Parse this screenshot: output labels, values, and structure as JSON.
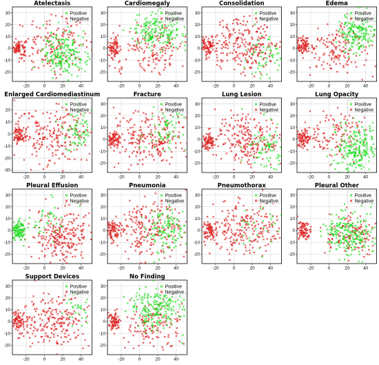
{
  "figure": {
    "rows": 4,
    "cols": 4
  },
  "colors": {
    "positive": "#22dd22",
    "negative": "#dd2222"
  },
  "chart_data": [
    {
      "type": "scatter",
      "title": "Atelectasis",
      "xlim": [
        -35,
        52
      ],
      "ylim": [
        -28,
        35
      ],
      "xticks": [
        -20,
        0,
        20,
        40
      ],
      "yticks": [
        -20,
        -10,
        0,
        10,
        20,
        30
      ],
      "legend": {
        "location": "top-right",
        "entries": [
          "Positive",
          "Negative"
        ]
      },
      "grid": true,
      "series": [
        {
          "name": "Positive",
          "clusters": [
            {
              "cx": 22,
              "cy": -5,
              "sx": 12,
              "sy": 9,
              "n": 200
            }
          ]
        },
        {
          "name": "Negative",
          "clusters": [
            {
              "cx": -28,
              "cy": 0,
              "sx": 4,
              "sy": 4,
              "n": 80
            },
            {
              "cx": 10,
              "cy": 3,
              "sx": 20,
              "sy": 11,
              "n": 150
            }
          ]
        }
      ]
    },
    {
      "type": "scatter",
      "title": "Cardiomegaly",
      "xlim": [
        -35,
        52
      ],
      "ylim": [
        -28,
        35
      ],
      "xticks": [
        -20,
        0,
        20,
        40
      ],
      "yticks": [
        -20,
        -10,
        0,
        10,
        20,
        30
      ],
      "legend": {
        "location": "top-right",
        "entries": [
          "Positive",
          "Negative"
        ]
      },
      "grid": true,
      "series": [
        {
          "name": "Positive",
          "clusters": [
            {
              "cx": 20,
              "cy": 15,
              "sx": 15,
              "sy": 8,
              "n": 200
            }
          ]
        },
        {
          "name": "Negative",
          "clusters": [
            {
              "cx": -28,
              "cy": 0,
              "sx": 4,
              "sy": 4,
              "n": 80
            },
            {
              "cx": 12,
              "cy": 0,
              "sx": 20,
              "sy": 11,
              "n": 150
            }
          ]
        }
      ]
    },
    {
      "type": "scatter",
      "title": "Consolidation",
      "xlim": [
        -35,
        52
      ],
      "ylim": [
        -28,
        35
      ],
      "xticks": [
        -20,
        0,
        20,
        40
      ],
      "yticks": [
        -20,
        -10,
        0,
        10,
        20,
        30
      ],
      "legend": {
        "location": "top-right",
        "entries": [
          "Positive",
          "Negative"
        ]
      },
      "grid": true,
      "series": [
        {
          "name": "Positive",
          "clusters": [
            {
              "cx": 35,
              "cy": -5,
              "sx": 10,
              "sy": 10,
              "n": 60
            }
          ]
        },
        {
          "name": "Negative",
          "clusters": [
            {
              "cx": -28,
              "cy": 2,
              "sx": 4,
              "sy": 4,
              "n": 80
            },
            {
              "cx": 12,
              "cy": 3,
              "sx": 20,
              "sy": 12,
              "n": 250
            }
          ]
        }
      ]
    },
    {
      "type": "scatter",
      "title": "Edema",
      "xlim": [
        -35,
        52
      ],
      "ylim": [
        -28,
        35
      ],
      "xticks": [
        -20,
        0,
        20,
        40
      ],
      "yticks": [
        -20,
        -10,
        0,
        10,
        20,
        30
      ],
      "legend": {
        "location": "top-right",
        "entries": [
          "Positive",
          "Negative"
        ]
      },
      "grid": true,
      "series": [
        {
          "name": "Positive",
          "clusters": [
            {
              "cx": 30,
              "cy": 15,
              "sx": 10,
              "sy": 10,
              "n": 200
            }
          ]
        },
        {
          "name": "Negative",
          "clusters": [
            {
              "cx": -28,
              "cy": 2,
              "sx": 4,
              "sy": 4,
              "n": 80
            },
            {
              "cx": 10,
              "cy": 0,
              "sx": 18,
              "sy": 11,
              "n": 150
            }
          ]
        }
      ]
    },
    {
      "type": "scatter",
      "title": "Enlarged Cardiomediastinum",
      "xlim": [
        -35,
        52
      ],
      "ylim": [
        -32,
        30
      ],
      "xticks": [
        -20,
        0,
        20,
        40
      ],
      "yticks": [
        -30,
        -20,
        -10,
        0,
        10,
        20
      ],
      "legend": {
        "location": "top-right",
        "entries": [
          "Positive",
          "Negative"
        ]
      },
      "grid": true,
      "series": [
        {
          "name": "Positive",
          "clusters": [
            {
              "cx": 35,
              "cy": 5,
              "sx": 10,
              "sy": 10,
              "n": 80
            }
          ]
        },
        {
          "name": "Negative",
          "clusters": [
            {
              "cx": -28,
              "cy": 0,
              "sx": 4,
              "sy": 4,
              "n": 80
            },
            {
              "cx": 12,
              "cy": 0,
              "sx": 20,
              "sy": 12,
              "n": 220
            }
          ]
        }
      ]
    },
    {
      "type": "scatter",
      "title": "Fracture",
      "xlim": [
        -35,
        52
      ],
      "ylim": [
        -28,
        35
      ],
      "xticks": [
        -20,
        0,
        20,
        40
      ],
      "yticks": [
        -20,
        -10,
        0,
        10,
        20,
        30
      ],
      "legend": {
        "location": "top-right",
        "entries": [
          "Positive",
          "Negative"
        ]
      },
      "grid": true,
      "series": [
        {
          "name": "Positive",
          "clusters": [
            {
              "cx": 30,
              "cy": 5,
              "sx": 12,
              "sy": 10,
              "n": 70
            }
          ]
        },
        {
          "name": "Negative",
          "clusters": [
            {
              "cx": -28,
              "cy": 0,
              "sx": 4,
              "sy": 4,
              "n": 80
            },
            {
              "cx": 12,
              "cy": 2,
              "sx": 20,
              "sy": 12,
              "n": 230
            }
          ]
        }
      ]
    },
    {
      "type": "scatter",
      "title": "Lung Lesion",
      "xlim": [
        -35,
        52
      ],
      "ylim": [
        -28,
        35
      ],
      "xticks": [
        -20,
        0,
        20,
        40
      ],
      "yticks": [
        -20,
        -10,
        0,
        10,
        20,
        30
      ],
      "legend": {
        "location": "top-right",
        "entries": [
          "Positive",
          "Negative"
        ]
      },
      "grid": true,
      "series": [
        {
          "name": "Positive",
          "clusters": [
            {
              "cx": 35,
              "cy": -5,
              "sx": 10,
              "sy": 10,
              "n": 80
            }
          ]
        },
        {
          "name": "Negative",
          "clusters": [
            {
              "cx": -28,
              "cy": -2,
              "sx": 4,
              "sy": 4,
              "n": 80
            },
            {
              "cx": 15,
              "cy": 0,
              "sx": 18,
              "sy": 11,
              "n": 230
            }
          ]
        }
      ]
    },
    {
      "type": "scatter",
      "title": "Lung Opacity",
      "xlim": [
        -35,
        52
      ],
      "ylim": [
        -28,
        35
      ],
      "xticks": [
        -20,
        0,
        20,
        40
      ],
      "yticks": [
        -20,
        -10,
        0,
        10,
        20,
        30
      ],
      "legend": {
        "location": "top-right",
        "entries": [
          "Positive",
          "Negative"
        ]
      },
      "grid": true,
      "series": [
        {
          "name": "Positive",
          "clusters": [
            {
              "cx": 30,
              "cy": -8,
              "sx": 12,
              "sy": 10,
              "n": 220
            }
          ]
        },
        {
          "name": "Negative",
          "clusters": [
            {
              "cx": -28,
              "cy": 0,
              "sx": 4,
              "sy": 4,
              "n": 80
            },
            {
              "cx": 8,
              "cy": 5,
              "sx": 18,
              "sy": 11,
              "n": 120
            }
          ]
        }
      ]
    },
    {
      "type": "scatter",
      "title": "Pleural Effusion",
      "xlim": [
        -35,
        52
      ],
      "ylim": [
        -28,
        35
      ],
      "xticks": [
        -20,
        0,
        20,
        40
      ],
      "yticks": [
        -20,
        -10,
        0,
        10,
        20,
        30
      ],
      "legend": {
        "location": "top-right",
        "entries": [
          "Positive",
          "Negative"
        ]
      },
      "grid": true,
      "series": [
        {
          "name": "Positive",
          "clusters": [
            {
              "cx": -28,
              "cy": 0,
              "sx": 4,
              "sy": 4,
              "n": 110
            },
            {
              "cx": 5,
              "cy": 8,
              "sx": 12,
              "sy": 8,
              "n": 40
            }
          ]
        },
        {
          "name": "Negative",
          "clusters": [
            {
              "cx": 20,
              "cy": -5,
              "sx": 15,
              "sy": 11,
              "n": 250
            }
          ]
        }
      ]
    },
    {
      "type": "scatter",
      "title": "Pneumonia",
      "xlim": [
        -35,
        52
      ],
      "ylim": [
        -28,
        35
      ],
      "xticks": [
        -20,
        0,
        20,
        40
      ],
      "yticks": [
        -20,
        -10,
        0,
        10,
        20,
        30
      ],
      "legend": {
        "location": "top-right",
        "entries": [
          "Positive",
          "Negative"
        ]
      },
      "grid": true,
      "series": [
        {
          "name": "Positive",
          "clusters": [
            {
              "cx": 30,
              "cy": 0,
              "sx": 10,
              "sy": 10,
              "n": 120
            }
          ]
        },
        {
          "name": "Negative",
          "clusters": [
            {
              "cx": -28,
              "cy": 0,
              "sx": 4,
              "sy": 4,
              "n": 80
            },
            {
              "cx": 12,
              "cy": 2,
              "sx": 20,
              "sy": 12,
              "n": 220
            }
          ]
        }
      ]
    },
    {
      "type": "scatter",
      "title": "Pneumothorax",
      "xlim": [
        -35,
        52
      ],
      "ylim": [
        -28,
        35
      ],
      "xticks": [
        -20,
        0,
        20,
        40
      ],
      "yticks": [
        -20,
        -10,
        0,
        10,
        20,
        30
      ],
      "legend": {
        "location": "top-right",
        "entries": [
          "Positive",
          "Negative"
        ]
      },
      "grid": true,
      "series": [
        {
          "name": "Positive",
          "clusters": [
            {
              "cx": 30,
              "cy": 5,
              "sx": 12,
              "sy": 10,
              "n": 30
            }
          ]
        },
        {
          "name": "Negative",
          "clusters": [
            {
              "cx": -28,
              "cy": 0,
              "sx": 4,
              "sy": 4,
              "n": 80
            },
            {
              "cx": 12,
              "cy": 2,
              "sx": 20,
              "sy": 12,
              "n": 230
            }
          ]
        }
      ]
    },
    {
      "type": "scatter",
      "title": "Pleural Other",
      "xlim": [
        -35,
        52
      ],
      "ylim": [
        -28,
        35
      ],
      "xticks": [
        -20,
        0,
        20,
        40
      ],
      "yticks": [
        -20,
        -10,
        0,
        10,
        20,
        30
      ],
      "legend": {
        "location": "top-right",
        "entries": [
          "Positive",
          "Negative"
        ]
      },
      "grid": true,
      "series": [
        {
          "name": "Positive",
          "clusters": [
            {
              "cx": 22,
              "cy": -3,
              "sx": 13,
              "sy": 10,
              "n": 220
            }
          ]
        },
        {
          "name": "Negative",
          "clusters": [
            {
              "cx": -28,
              "cy": 0,
              "sx": 4,
              "sy": 4,
              "n": 80
            },
            {
              "cx": 25,
              "cy": -5,
              "sx": 15,
              "sy": 10,
              "n": 130
            }
          ]
        }
      ]
    },
    {
      "type": "scatter",
      "title": "Support Devices",
      "xlim": [
        -35,
        52
      ],
      "ylim": [
        -28,
        35
      ],
      "xticks": [
        -20,
        0,
        20,
        40
      ],
      "yticks": [
        -20,
        -10,
        0,
        10,
        20,
        30
      ],
      "legend": {
        "location": "top-right",
        "entries": [
          "Positive",
          "Negative"
        ]
      },
      "grid": true,
      "series": [
        {
          "name": "Positive",
          "clusters": [
            {
              "cx": 35,
              "cy": 8,
              "sx": 8,
              "sy": 8,
              "n": 30
            }
          ]
        },
        {
          "name": "Negative",
          "clusters": [
            {
              "cx": -28,
              "cy": 0,
              "sx": 4,
              "sy": 4,
              "n": 80
            },
            {
              "cx": 12,
              "cy": 0,
              "sx": 20,
              "sy": 12,
              "n": 230
            }
          ]
        }
      ]
    },
    {
      "type": "scatter",
      "title": "No Finding",
      "xlim": [
        -35,
        52
      ],
      "ylim": [
        -28,
        35
      ],
      "xticks": [
        -20,
        0,
        20,
        40
      ],
      "yticks": [
        -20,
        -10,
        0,
        10,
        20,
        30
      ],
      "legend": {
        "location": "top-right",
        "entries": [
          "Positive",
          "Negative"
        ]
      },
      "grid": true,
      "series": [
        {
          "name": "Positive",
          "clusters": [
            {
              "cx": 20,
              "cy": 12,
              "sx": 15,
              "sy": 9,
              "n": 220
            }
          ]
        },
        {
          "name": "Negative",
          "clusters": [
            {
              "cx": -28,
              "cy": 0,
              "sx": 4,
              "sy": 4,
              "n": 80
            },
            {
              "cx": 15,
              "cy": -5,
              "sx": 18,
              "sy": 10,
              "n": 140
            }
          ]
        }
      ]
    }
  ]
}
